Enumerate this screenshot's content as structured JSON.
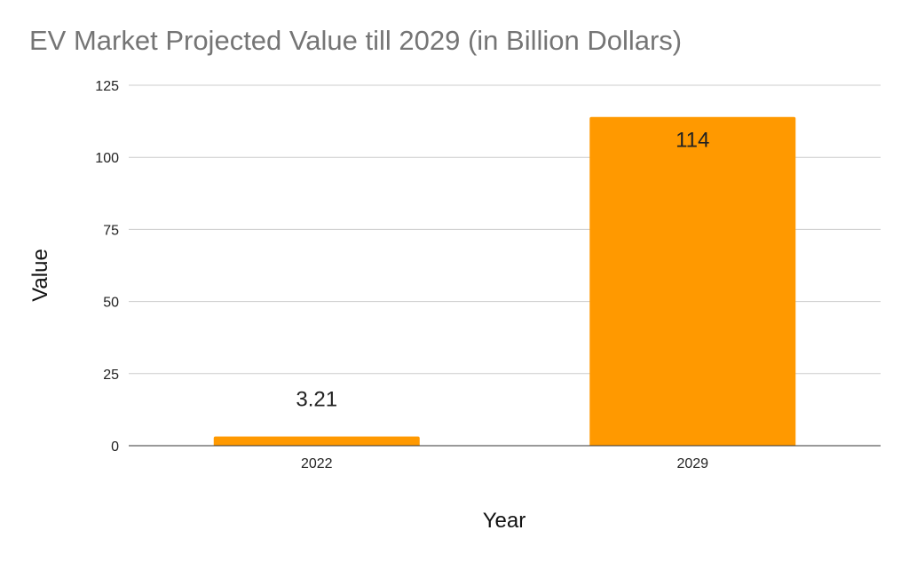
{
  "chart_data": {
    "type": "bar",
    "title": "EV Market Projected Value till 2029 (in Billion Dollars)",
    "xlabel": "Year",
    "ylabel": "Value",
    "categories": [
      "2022",
      "2029"
    ],
    "values": [
      3.21,
      114
    ],
    "data_labels": [
      "3.21",
      "114"
    ],
    "ylim": [
      0,
      125
    ],
    "yticks": [
      0,
      25,
      50,
      75,
      100,
      125
    ],
    "ytick_labels": [
      "0",
      "25",
      "50",
      "75",
      "100",
      "125"
    ],
    "grid": true,
    "legend": "none",
    "bar_color": "#FF9900"
  }
}
